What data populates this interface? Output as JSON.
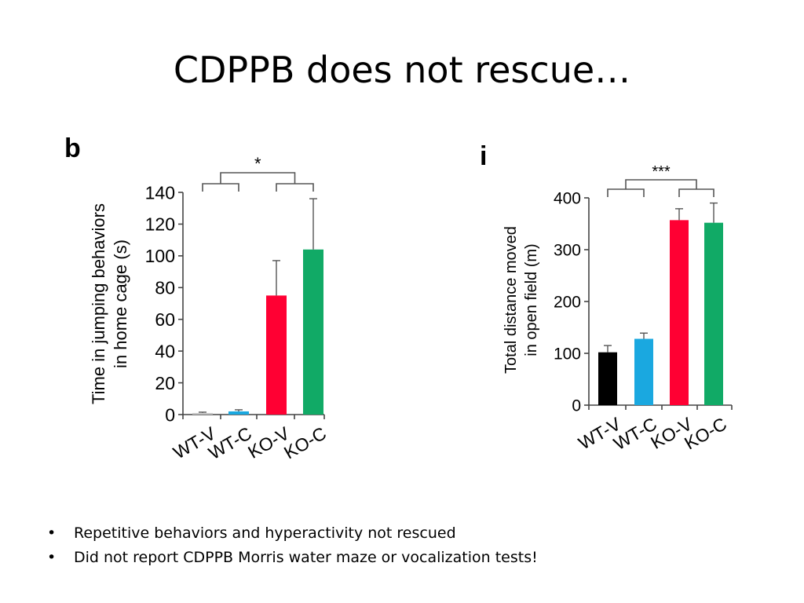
{
  "slide": {
    "title": "CDPPB does not rescue…",
    "bullets": [
      "Repetitive behaviors and hyperactivity not rescued",
      "Did not report CDPPB Morris water maze or vocalization tests!"
    ],
    "bullet_glyph": "•"
  },
  "chart_data": [
    {
      "panel": "b",
      "type": "bar",
      "categories": [
        "WT-V",
        "WT-C",
        "KO-V",
        "KO-C"
      ],
      "values": [
        1,
        2,
        75,
        104
      ],
      "errors": [
        0.5,
        1,
        22,
        32
      ],
      "colors": [
        "#c8c8c8",
        "#1aa8e0",
        "#ff0033",
        "#11aa66"
      ],
      "ylabel_lines": [
        "Time in jumping behaviors",
        "in home cage (s)"
      ],
      "ylim": [
        0,
        140
      ],
      "yticks": [
        0,
        20,
        40,
        60,
        80,
        100,
        120,
        140
      ],
      "significance": "*"
    },
    {
      "panel": "i",
      "type": "bar",
      "categories": [
        "WT-V",
        "WT-C",
        "KO-V",
        "KO-C"
      ],
      "values": [
        102,
        128,
        357,
        352
      ],
      "errors": [
        13,
        11,
        22,
        38
      ],
      "colors": [
        "#000000",
        "#1aa8e0",
        "#ff0033",
        "#11aa66"
      ],
      "ylabel_lines": [
        "Total distance moved",
        "in open field (m)"
      ],
      "ylim": [
        0,
        400
      ],
      "yticks": [
        0,
        100,
        200,
        300,
        400
      ],
      "significance": "***"
    }
  ]
}
